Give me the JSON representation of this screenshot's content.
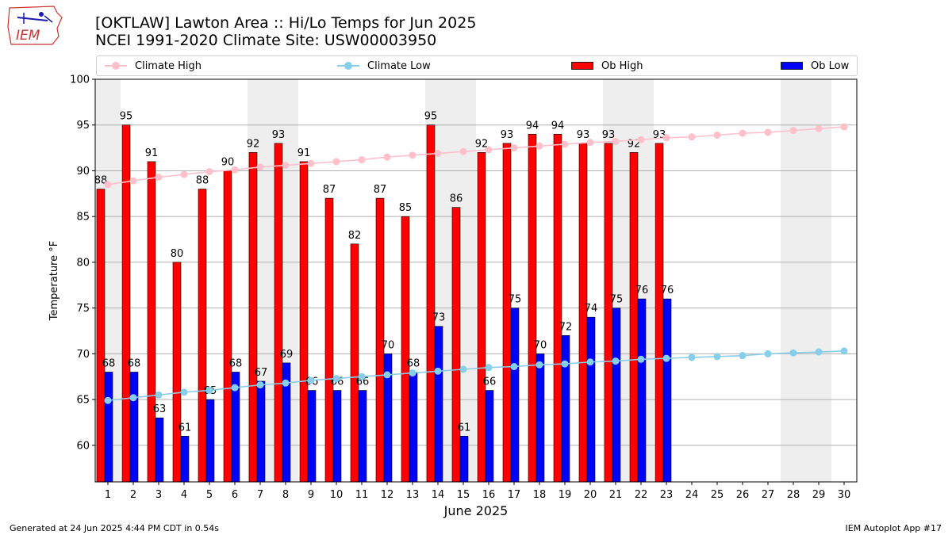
{
  "header": {
    "title_line1": "[OKTLAW] Lawton Area :: Hi/Lo Temps for Jun 2025",
    "title_line2": "NCEI 1991-2020 Climate Site: USW00003950"
  },
  "logo": {
    "text": "IEM",
    "icon": "iowa-state-outline-icon"
  },
  "legend": {
    "climate_high": "Climate High",
    "climate_low": "Climate Low",
    "ob_high": "Ob High",
    "ob_low": "Ob Low"
  },
  "footer": {
    "left": "Generated at 24 Jun 2025 4:44 PM CDT in 0.54s",
    "right": "IEM Autoplot App #17"
  },
  "colors": {
    "ob_high": "#ff0000",
    "ob_low": "#0000ff",
    "climate_high": "#ffc0cb",
    "climate_low": "#87ceeb",
    "weekend_shade": "#eeeeee",
    "grid": "#b0b0b0"
  },
  "chart_data": {
    "type": "bar",
    "xlabel": "June 2025",
    "ylabel": "Temperature °F",
    "ylim": [
      56,
      100
    ],
    "yticks": [
      60,
      65,
      70,
      75,
      80,
      85,
      90,
      95,
      100
    ],
    "grid": "horizontal",
    "legend_position": "top",
    "days": [
      1,
      2,
      3,
      4,
      5,
      6,
      7,
      8,
      9,
      10,
      11,
      12,
      13,
      14,
      15,
      16,
      17,
      18,
      19,
      20,
      21,
      22,
      23,
      24,
      25,
      26,
      27,
      28,
      29,
      30
    ],
    "weekend_days": [
      1,
      7,
      8,
      14,
      15,
      21,
      22,
      28,
      29
    ],
    "series": [
      {
        "name": "Ob High",
        "kind": "bar",
        "values": [
          88,
          95,
          91,
          80,
          88,
          90,
          92,
          93,
          91,
          87,
          82,
          87,
          85,
          95,
          86,
          92,
          93,
          94,
          94,
          93,
          93,
          92,
          93
        ]
      },
      {
        "name": "Ob Low",
        "kind": "bar",
        "values": [
          68,
          68,
          63,
          61,
          65,
          68,
          67,
          69,
          66,
          66,
          66,
          70,
          68,
          73,
          61,
          66,
          75,
          70,
          72,
          74,
          75,
          76,
          76
        ]
      },
      {
        "name": "Climate High",
        "kind": "line",
        "values": [
          88.5,
          88.9,
          89.3,
          89.6,
          89.9,
          90.1,
          90.4,
          90.6,
          90.8,
          91.0,
          91.2,
          91.5,
          91.7,
          91.9,
          92.1,
          92.3,
          92.5,
          92.7,
          92.9,
          93.1,
          93.2,
          93.4,
          93.6,
          93.7,
          93.9,
          94.1,
          94.2,
          94.4,
          94.6,
          94.8
        ]
      },
      {
        "name": "Climate Low",
        "kind": "line",
        "values": [
          64.9,
          65.2,
          65.5,
          65.8,
          66.0,
          66.3,
          66.6,
          66.8,
          67.1,
          67.3,
          67.5,
          67.7,
          67.9,
          68.1,
          68.3,
          68.5,
          68.6,
          68.8,
          68.9,
          69.1,
          69.2,
          69.4,
          69.5,
          69.6,
          69.7,
          69.8,
          70.0,
          70.1,
          70.2,
          70.3
        ]
      }
    ]
  }
}
